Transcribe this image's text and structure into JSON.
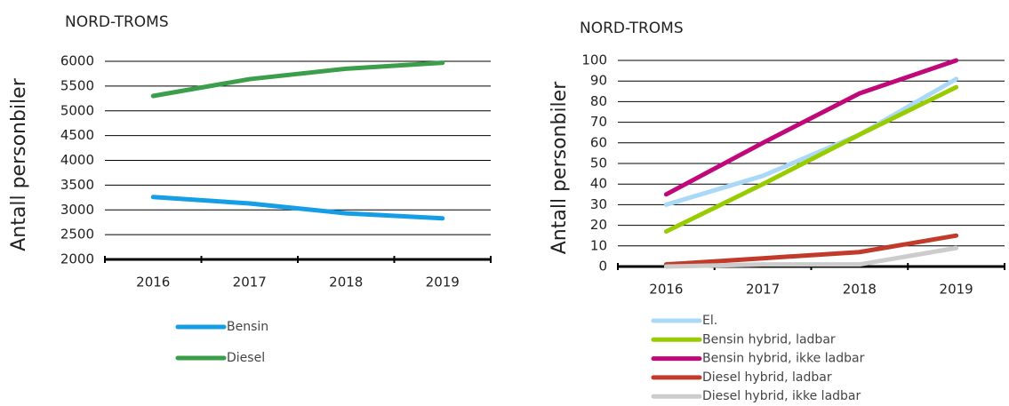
{
  "chart_data": [
    {
      "type": "line",
      "title": "NORD-TROMS",
      "y_label": "Antall personbiler",
      "categories": [
        "2016",
        "2017",
        "2018",
        "2019"
      ],
      "series": [
        {
          "name": "Bensin",
          "color": "#159ee6",
          "values": [
            3260,
            3130,
            2930,
            2830
          ]
        },
        {
          "name": "Diesel",
          "color": "#3b9e4a",
          "values": [
            5300,
            5640,
            5850,
            5970
          ]
        }
      ],
      "ylim": [
        2000,
        6000
      ],
      "yticks": [
        2000,
        2500,
        3000,
        3500,
        4000,
        4500,
        5000,
        5500,
        6000
      ],
      "grid": true
    },
    {
      "type": "line",
      "title": "NORD-TROMS",
      "y_label": "Antall personbiler",
      "categories": [
        "2016",
        "2017",
        "2018",
        "2019"
      ],
      "series": [
        {
          "name": "El.",
          "color": "#a9d9f6",
          "values": [
            30,
            44,
            64,
            91
          ]
        },
        {
          "name": "Bensin hybrid, ladbar",
          "color": "#99cc00",
          "values": [
            17,
            40,
            64,
            87
          ]
        },
        {
          "name": "Bensin hybrid, ikke ladbar",
          "color": "#c0087a",
          "values": [
            35,
            60,
            84,
            100
          ]
        },
        {
          "name": "Diesel hybrid, ladbar",
          "color": "#c23a2a",
          "values": [
            1,
            4,
            7,
            15
          ]
        },
        {
          "name": "Diesel hybrid, ikke ladbar",
          "color": "#cccccc",
          "values": [
            0,
            1,
            1,
            9
          ]
        }
      ],
      "ylim": [
        0,
        100
      ],
      "yticks": [
        0,
        10,
        20,
        30,
        40,
        50,
        60,
        70,
        80,
        90,
        100
      ],
      "grid": true
    }
  ]
}
